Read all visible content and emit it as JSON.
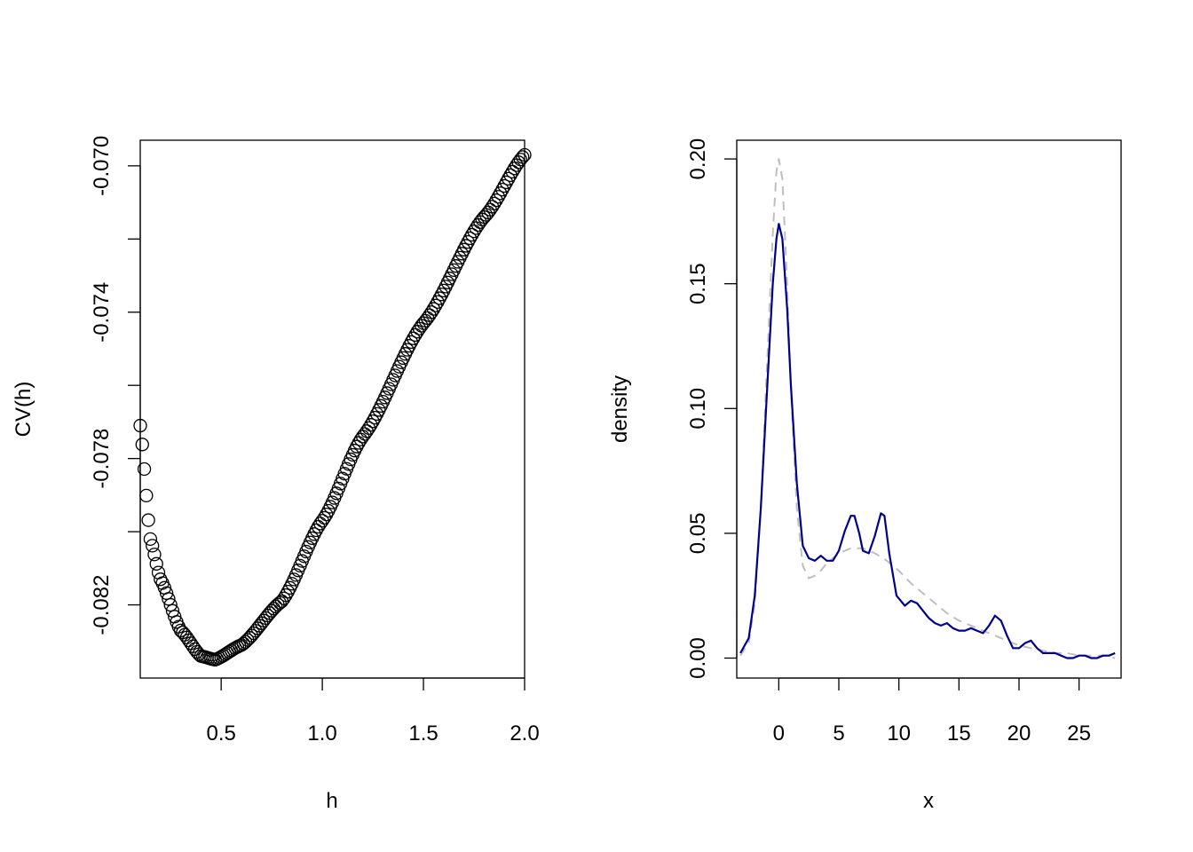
{
  "chart_data": [
    {
      "type": "scatter",
      "title": "",
      "xlabel": "h",
      "ylabel": "CV(h)",
      "xlim": [
        0.1,
        2.0
      ],
      "ylim": [
        -0.084,
        -0.0693
      ],
      "xticks": [
        0.5,
        1.0,
        1.5,
        2.0
      ],
      "xtick_labels": [
        "0.5",
        "1.0",
        "1.5",
        "2.0"
      ],
      "yticks": [
        -0.082,
        -0.08,
        -0.078,
        -0.076,
        -0.074,
        -0.072,
        -0.07
      ],
      "ytick_labels": [
        "-0.082",
        "",
        "-0.078",
        "",
        "-0.074",
        "",
        "-0.070"
      ],
      "grid": false,
      "marker": "open-circle",
      "marker_color": "#000000",
      "key_points": [
        {
          "h": 0.1,
          "cv": -0.0771
        },
        {
          "h": 0.15,
          "cv": -0.0802
        },
        {
          "h": 0.2,
          "cv": -0.0813
        },
        {
          "h": 0.3,
          "cv": -0.0827
        },
        {
          "h": 0.4,
          "cv": -0.0834
        },
        {
          "h": 0.47,
          "cv": -0.0835
        },
        {
          "h": 0.6,
          "cv": -0.0831
        },
        {
          "h": 0.8,
          "cv": -0.0819
        },
        {
          "h": 1.0,
          "cv": -0.0797
        },
        {
          "h": 1.2,
          "cv": -0.0774
        },
        {
          "h": 1.5,
          "cv": -0.0743
        },
        {
          "h": 1.8,
          "cv": -0.0714
        },
        {
          "h": 2.0,
          "cv": -0.0697
        }
      ],
      "h_step": 0.01
    },
    {
      "type": "line",
      "title": "",
      "xlabel": "x",
      "ylabel": "density",
      "xlim": [
        -3.5,
        28.5
      ],
      "ylim": [
        -0.008,
        0.2075
      ],
      "xticks": [
        0,
        5,
        10,
        15,
        20,
        25
      ],
      "xtick_labels": [
        "0",
        "5",
        "10",
        "15",
        "20",
        "25"
      ],
      "yticks": [
        0.0,
        0.05,
        0.1,
        0.15,
        0.2
      ],
      "ytick_labels": [
        "0.00",
        "0.05",
        "0.10",
        "0.15",
        "0.20"
      ],
      "grid": false,
      "series": [
        {
          "style": "solid",
          "color": "#00008B",
          "x": [
            -3.2,
            -2.5,
            -2.0,
            -1.5,
            -1.0,
            -0.5,
            -0.2,
            0.0,
            0.3,
            0.7,
            1.0,
            1.5,
            2.0,
            2.5,
            3.0,
            3.5,
            4.0,
            4.5,
            5.0,
            5.5,
            6.0,
            6.3,
            6.7,
            7.0,
            7.5,
            8.0,
            8.5,
            8.8,
            9.2,
            9.8,
            10.5,
            11.0,
            11.5,
            12.0,
            12.5,
            13.0,
            13.5,
            14.0,
            14.5,
            15.0,
            15.5,
            16.0,
            16.5,
            17.0,
            17.5,
            18.0,
            18.5,
            19.0,
            19.5,
            20.0,
            20.5,
            21.0,
            21.5,
            22.0,
            22.5,
            23.0,
            23.5,
            24.0,
            24.5,
            25.0,
            25.5,
            26.0,
            26.5,
            27.0,
            27.5,
            28.0
          ],
          "y": [
            0.002,
            0.008,
            0.025,
            0.06,
            0.105,
            0.15,
            0.168,
            0.174,
            0.168,
            0.14,
            0.11,
            0.07,
            0.045,
            0.04,
            0.039,
            0.041,
            0.039,
            0.039,
            0.043,
            0.051,
            0.057,
            0.057,
            0.05,
            0.043,
            0.042,
            0.049,
            0.058,
            0.057,
            0.042,
            0.025,
            0.021,
            0.023,
            0.022,
            0.019,
            0.016,
            0.014,
            0.013,
            0.014,
            0.012,
            0.011,
            0.011,
            0.012,
            0.011,
            0.01,
            0.013,
            0.017,
            0.015,
            0.009,
            0.004,
            0.004,
            0.006,
            0.007,
            0.004,
            0.002,
            0.002,
            0.002,
            0.001,
            0.0,
            0.0,
            0.001,
            0.001,
            0.0,
            0.0,
            0.001,
            0.001,
            0.002
          ]
        },
        {
          "style": "dashed",
          "color": "#BEBEBE",
          "x": [
            -3.2,
            -2.5,
            -2.0,
            -1.5,
            -1.0,
            -0.5,
            -0.2,
            0.0,
            0.3,
            0.7,
            1.0,
            1.5,
            2.0,
            2.5,
            3.0,
            3.5,
            4.0,
            5.0,
            6.0,
            7.0,
            8.0,
            9.0,
            10.0,
            11.0,
            12.0,
            13.0,
            14.0,
            15.0,
            16.0,
            17.0,
            18.0,
            19.0,
            20.0,
            21.0,
            22.0,
            23.0,
            24.0,
            25.0,
            26.0,
            27.0,
            28.0
          ],
          "y": [
            0.001,
            0.006,
            0.022,
            0.06,
            0.115,
            0.17,
            0.195,
            0.2,
            0.192,
            0.15,
            0.108,
            0.06,
            0.037,
            0.032,
            0.033,
            0.035,
            0.038,
            0.042,
            0.044,
            0.044,
            0.042,
            0.039,
            0.035,
            0.03,
            0.026,
            0.022,
            0.018,
            0.015,
            0.013,
            0.011,
            0.009,
            0.007,
            0.005,
            0.004,
            0.003,
            0.002,
            0.002,
            0.001,
            0.001,
            0.001,
            0.0
          ]
        }
      ]
    }
  ]
}
